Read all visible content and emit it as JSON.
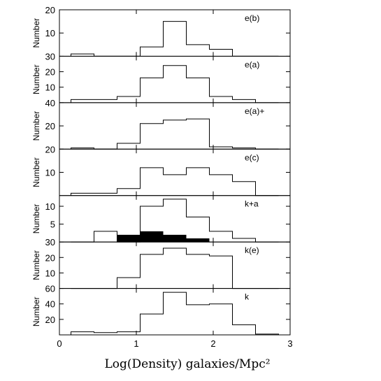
{
  "chart_data": {
    "type": "histogram-stack",
    "xlabel": "Log(Density) galaxies/Mpc²",
    "xlim": [
      0,
      3
    ],
    "x_ticks": [
      "0",
      "1",
      "2",
      "3"
    ],
    "bin_edges": [
      0.15,
      0.45,
      0.75,
      1.05,
      1.35,
      1.65,
      1.95,
      2.25,
      2.55,
      2.85
    ],
    "panels": [
      {
        "label": "e(b)",
        "ylabel": "Number",
        "ylim": [
          0,
          20
        ],
        "y_ticks": [
          "10",
          "20"
        ],
        "values": [
          1,
          0,
          0,
          4,
          15,
          5,
          3,
          0,
          0
        ]
      },
      {
        "label": "e(a)",
        "ylabel": "Number",
        "ylim": [
          0,
          30
        ],
        "y_ticks": [
          "10",
          "20",
          "30"
        ],
        "values": [
          2,
          2,
          4,
          16,
          24,
          16,
          4,
          2,
          0
        ]
      },
      {
        "label": "e(a)+",
        "ylabel": "Number",
        "ylim": [
          0,
          40
        ],
        "y_ticks": [
          "20",
          "40"
        ],
        "values": [
          1,
          0,
          5,
          22,
          25,
          26,
          2,
          1,
          0
        ]
      },
      {
        "label": "e(c)",
        "ylabel": "Number",
        "ylim": [
          0,
          20
        ],
        "y_ticks": [
          "10",
          "20"
        ],
        "values": [
          1,
          1,
          3,
          12,
          9,
          12,
          9,
          6,
          0
        ]
      },
      {
        "label": "k+a",
        "ylabel": "Number",
        "ylim": [
          0,
          13
        ],
        "y_ticks": [
          "5",
          "10"
        ],
        "values": [
          0,
          3,
          0,
          10,
          12,
          7,
          3,
          1,
          0
        ],
        "filled_values": [
          0,
          0,
          2,
          3,
          2,
          1,
          0,
          0,
          0
        ]
      },
      {
        "label": "k(e)",
        "ylabel": "Number",
        "ylim": [
          0,
          30
        ],
        "y_ticks": [
          "10",
          "20",
          "30"
        ],
        "values": [
          0,
          0,
          7,
          22,
          26,
          22,
          21,
          0,
          0
        ]
      },
      {
        "label": "k",
        "ylabel": "Number",
        "ylim": [
          0,
          60
        ],
        "y_ticks": [
          "20",
          "40",
          "60"
        ],
        "values": [
          4,
          3,
          4,
          27,
          55,
          39,
          40,
          13,
          1
        ]
      }
    ]
  }
}
